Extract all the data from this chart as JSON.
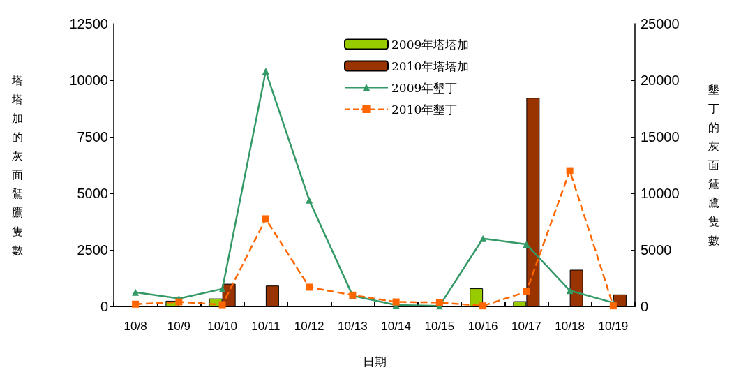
{
  "chart_data": {
    "type": "bar",
    "xlabel": "日期",
    "ylabel": "塔塔加的灰面鵟鷹隻數",
    "y2label": "墾丁的灰面鵟鷹隻數",
    "categories": [
      "10/8",
      "10/9",
      "10/10",
      "10/11",
      "10/12",
      "10/13",
      "10/14",
      "10/15",
      "10/16",
      "10/17",
      "10/18",
      "10/19"
    ],
    "series": [
      {
        "name": "2009年塔塔加",
        "color": "#99cc00",
        "values": [
          0,
          250,
          350,
          0,
          0,
          0,
          0,
          0,
          800,
          230,
          0,
          0
        ]
      },
      {
        "name": "2010年塔塔加",
        "color": "#993300",
        "values": [
          0,
          20,
          1000,
          920,
          30,
          0,
          0,
          0,
          0,
          9220,
          1620,
          530
        ]
      },
      {
        "name": "2009年墾丁",
        "type": "line",
        "axis": "y2",
        "color": "#339966",
        "marker": "triangle",
        "line_style": "solid",
        "values": [
          1250,
          700,
          1550,
          20800,
          9400,
          950,
          120,
          50,
          6000,
          5500,
          1400,
          330
        ]
      },
      {
        "name": "2010年墾丁",
        "type": "line",
        "axis": "y2",
        "color": "#ff6600",
        "marker": "square",
        "line_style": "dashed",
        "values": [
          200,
          400,
          150,
          7750,
          1700,
          1000,
          400,
          350,
          50,
          1300,
          12000,
          50
        ]
      }
    ],
    "ylim": [
      0,
      12500
    ],
    "yticks": [
      0,
      2500,
      5000,
      7500,
      10000,
      12500
    ],
    "y2lim": [
      0,
      25000
    ],
    "y2ticks": [
      0,
      5000,
      10000,
      15000,
      20000,
      25000
    ],
    "grid": false,
    "legend": "top"
  }
}
